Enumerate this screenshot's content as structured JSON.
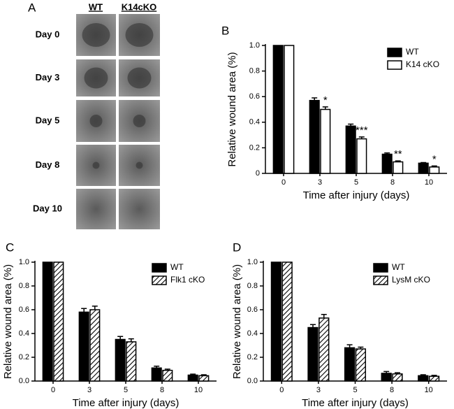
{
  "photo_panel": {
    "letter": "A",
    "columns": [
      "WT",
      "K14cKO"
    ],
    "rows": [
      "Day 0",
      "Day 3",
      "Day 5",
      "Day 8",
      "Day 10"
    ]
  },
  "chart_data": [
    {
      "type": "bar",
      "panel_label": "B",
      "x_label": "Time after injury (days)",
      "y_label": "Relative wound area (%)",
      "categories": [
        "0",
        "3",
        "5",
        "8",
        "10"
      ],
      "series": [
        {
          "name": "WT",
          "color": "#000000",
          "pattern": "solid",
          "values": [
            1.0,
            0.57,
            0.37,
            0.15,
            0.08
          ],
          "errors": [
            0,
            0.02,
            0.015,
            0.01,
            0.005
          ]
        },
        {
          "name": "K14 cKO",
          "color": "#ffffff",
          "pattern": "solid",
          "values": [
            1.0,
            0.5,
            0.27,
            0.09,
            0.05
          ],
          "errors": [
            0,
            0.02,
            0.015,
            0.008,
            0.008
          ],
          "significance": [
            null,
            "*",
            "***",
            "**",
            "*"
          ]
        }
      ],
      "ylim": [
        0,
        1.0
      ],
      "yticks": [
        0,
        0.2,
        0.4,
        0.6,
        0.8,
        {
          "value": 1.0,
          "label": "1.0"
        }
      ],
      "legend": "upper right"
    },
    {
      "type": "bar",
      "panel_label": "C",
      "x_label": "Time after injury (days)",
      "y_label": "Relative wound area (%)",
      "categories": [
        "0",
        "3",
        "5",
        "8",
        "10"
      ],
      "series": [
        {
          "name": "WT",
          "color": "#000000",
          "pattern": "solid",
          "values": [
            1.0,
            0.58,
            0.35,
            0.11,
            0.05
          ],
          "errors": [
            0,
            0.03,
            0.025,
            0.015,
            0.008
          ]
        },
        {
          "name": "Flk1 cKO",
          "color": "#ffffff",
          "pattern": "hatch",
          "values": [
            1.0,
            0.6,
            0.33,
            0.09,
            0.045
          ],
          "errors": [
            0,
            0.03,
            0.025,
            0.01,
            0.008
          ]
        }
      ],
      "ylim": [
        0,
        1.0
      ],
      "yticks": [
        {
          "value": 0,
          "label": "0.0"
        },
        0.2,
        0.4,
        0.6,
        0.8,
        {
          "value": 1.0,
          "label": "1.0"
        }
      ],
      "legend": "upper right"
    },
    {
      "type": "bar",
      "panel_label": "D",
      "x_label": "Time after injury (days)",
      "y_label": "Relative wound area (%)",
      "categories": [
        "0",
        "3",
        "5",
        "8",
        "10"
      ],
      "series": [
        {
          "name": "WT",
          "color": "#000000",
          "pattern": "solid",
          "values": [
            1.0,
            0.45,
            0.28,
            0.065,
            0.045
          ],
          "errors": [
            0,
            0.025,
            0.025,
            0.015,
            0.008
          ]
        },
        {
          "name": "LysM cKO",
          "color": "#ffffff",
          "pattern": "hatch",
          "values": [
            1.0,
            0.53,
            0.27,
            0.06,
            0.04
          ],
          "errors": [
            0,
            0.03,
            0.015,
            0.01,
            0.008
          ]
        }
      ],
      "ylim": [
        0,
        1.0
      ],
      "yticks": [
        {
          "value": 0,
          "label": "0.0"
        },
        0.2,
        0.4,
        0.6,
        0.8,
        {
          "value": 1.0,
          "label": "1.0"
        }
      ],
      "legend": "upper right"
    }
  ]
}
